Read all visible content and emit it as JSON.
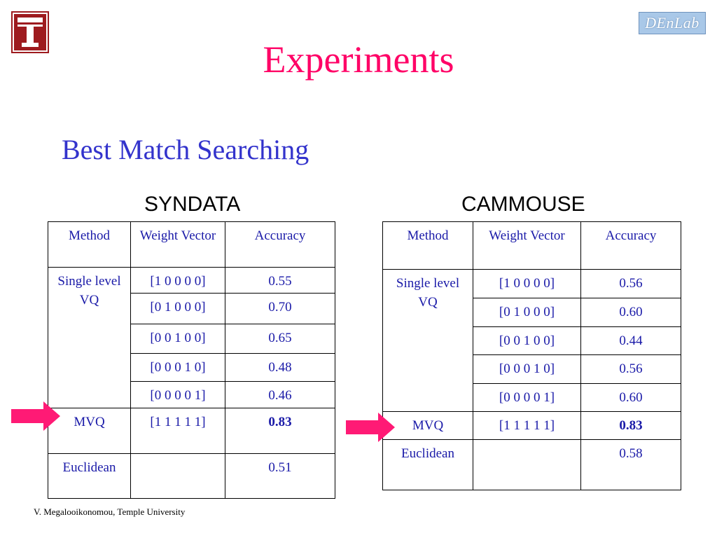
{
  "slide": {
    "title": "Experiments",
    "subtitle": "Best Match Searching",
    "footer": "V. Megalooikonomou, Temple University",
    "logo_right_text": "DEnLab",
    "colors": {
      "title": "#ff0066",
      "subtitle": "#3333cc",
      "table_text": "#1a1aa8",
      "arrow": "#ff1a75",
      "logo": "#9e1b1f"
    }
  },
  "syndata": {
    "heading": "SYNDATA",
    "headers": {
      "method": "Method",
      "weight": "Weight Vector",
      "accuracy": "Accuracy"
    },
    "group_label": "Single level VQ",
    "rows": [
      {
        "weight": "[1 0 0 0 0]",
        "accuracy": "0.55"
      },
      {
        "weight": "[0 1 0 0 0]",
        "accuracy": "0.70"
      },
      {
        "weight": "[0 0 1 0 0]",
        "accuracy": "0.65"
      },
      {
        "weight": "[0 0 0 1 0]",
        "accuracy": "0.48"
      },
      {
        "weight": "[0 0 0 0 1]",
        "accuracy": "0.46"
      }
    ],
    "mvq": {
      "method": "MVQ",
      "weight": "[1 1 1 1 1]",
      "accuracy": "0.83"
    },
    "euclidean": {
      "method": "Euclidean",
      "weight": "",
      "accuracy": "0.51"
    }
  },
  "cammouse": {
    "heading": "CAMMOUSE",
    "headers": {
      "method": "Method",
      "weight": "Weight Vector",
      "accuracy": "Accuracy"
    },
    "group_label": "Single level VQ",
    "rows": [
      {
        "weight": "[1 0 0 0 0]",
        "accuracy": "0.56"
      },
      {
        "weight": "[0 1 0 0 0]",
        "accuracy": "0.60"
      },
      {
        "weight": "[0 0 1 0 0]",
        "accuracy": "0.44"
      },
      {
        "weight": "[0 0 0 1 0]",
        "accuracy": "0.56"
      },
      {
        "weight": "[0 0 0 0 1]",
        "accuracy": "0.60"
      }
    ],
    "mvq": {
      "method": "MVQ",
      "weight": "[1 1 1 1 1]",
      "accuracy": "0.83"
    },
    "euclidean": {
      "method": "Euclidean",
      "weight": "",
      "accuracy": "0.58"
    }
  }
}
